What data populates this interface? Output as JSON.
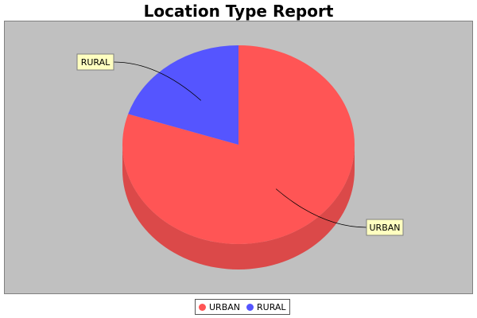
{
  "chart_data": {
    "type": "pie",
    "style": "3d",
    "title": "Location Type Report",
    "slices": [
      {
        "label": "URBAN",
        "value": 80,
        "color": "#ff5555"
      },
      {
        "label": "RURAL",
        "value": 20,
        "color": "#5555ff"
      }
    ],
    "legend": {
      "placement": "bottom",
      "entries": [
        "URBAN",
        "RURAL"
      ]
    },
    "plot_background": "#c0c0c0"
  }
}
